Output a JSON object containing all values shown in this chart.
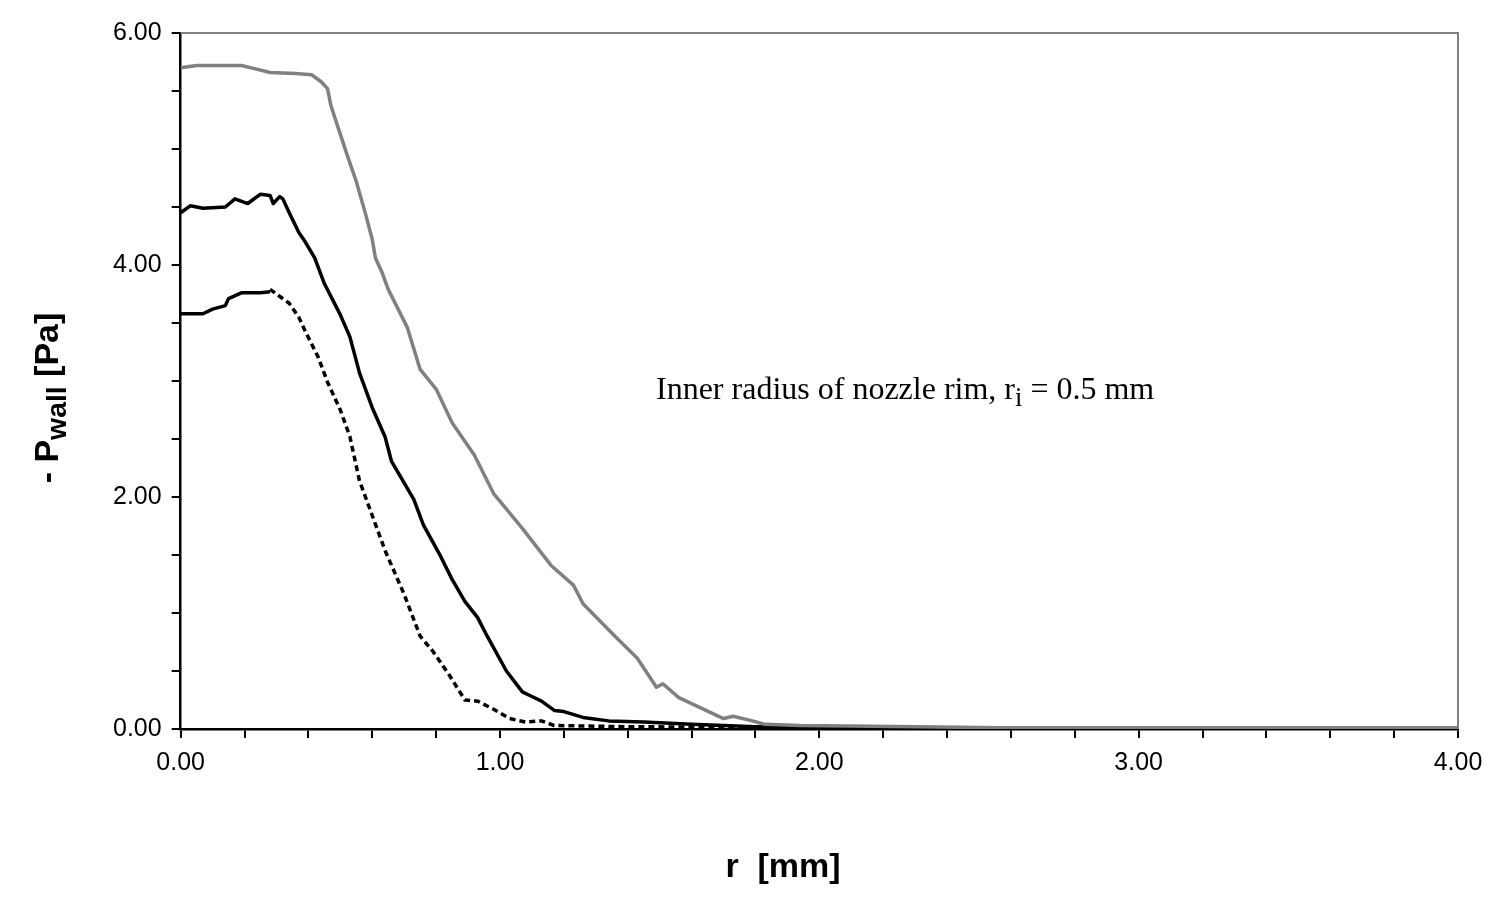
{
  "chart_data": {
    "type": "line",
    "xlabel": "r  [mm]",
    "ylabel": "- P$_{wall}$ [Pa]",
    "annotations": [
      "Inner radius of nozzle rim, r$_{i}$ = 0.5 mm"
    ],
    "xlim": [
      0,
      4
    ],
    "xticks": [
      {
        "value": 0,
        "label": "0.00"
      },
      {
        "value": 0.2,
        "label": null
      },
      {
        "value": 0.4,
        "label": null
      },
      {
        "value": 0.6,
        "label": null
      },
      {
        "value": 0.8,
        "label": null
      },
      {
        "value": 1,
        "label": "1.00"
      },
      {
        "value": 1.2,
        "label": null
      },
      {
        "value": 1.4,
        "label": null
      },
      {
        "value": 1.6,
        "label": null
      },
      {
        "value": 1.8,
        "label": null
      },
      {
        "value": 2,
        "label": "2.00"
      },
      {
        "value": 2.2,
        "label": null
      },
      {
        "value": 2.4,
        "label": null
      },
      {
        "value": 2.6,
        "label": null
      },
      {
        "value": 2.8,
        "label": null
      },
      {
        "value": 3,
        "label": "3.00"
      },
      {
        "value": 3.2,
        "label": null
      },
      {
        "value": 3.4,
        "label": null
      },
      {
        "value": 3.6,
        "label": null
      },
      {
        "value": 3.8,
        "label": null
      },
      {
        "value": 4,
        "label": "4.00"
      }
    ],
    "ylim": [
      0,
      6
    ],
    "yticks": [
      {
        "value": 0,
        "label": "0.00"
      },
      {
        "value": 0.5,
        "label": null
      },
      {
        "value": 1,
        "label": null
      },
      {
        "value": 1.5,
        "label": null
      },
      {
        "value": 2,
        "label": "2.00"
      },
      {
        "value": 2.5,
        "label": null
      },
      {
        "value": 3,
        "label": null
      },
      {
        "value": 3.5,
        "label": null
      },
      {
        "value": 4,
        "label": "4.00"
      },
      {
        "value": 4.5,
        "label": null
      },
      {
        "value": 5,
        "label": null
      },
      {
        "value": 5.5,
        "label": null
      },
      {
        "value": 6,
        "label": "6.00"
      }
    ],
    "marker": "none",
    "legend": false,
    "series": [
      {
        "color": "#808080",
        "line_style": "solid",
        "x": [
          0,
          0.05,
          0.19,
          0.28,
          0.36,
          0.41,
          0.44,
          0.46,
          0.47,
          0.49,
          0.52,
          0.55,
          0.58,
          0.6,
          0.61,
          0.63,
          0.65,
          0.71,
          0.75,
          0.8,
          0.85,
          0.92,
          0.98,
          1.07,
          1.16,
          1.23,
          1.26,
          1.36,
          1.43,
          1.49,
          1.51,
          1.56,
          1.63,
          1.7,
          1.73,
          1.79,
          1.83,
          1.94,
          2.31,
          2.57,
          4
        ],
        "values": [
          5.7,
          5.72,
          5.72,
          5.66,
          5.65,
          5.64,
          5.58,
          5.52,
          5.38,
          5.21,
          4.96,
          4.72,
          4.43,
          4.22,
          4.06,
          3.94,
          3.79,
          3.46,
          3.1,
          2.93,
          2.64,
          2.36,
          2.03,
          1.73,
          1.41,
          1.24,
          1.08,
          0.8,
          0.61,
          0.36,
          0.39,
          0.27,
          0.18,
          0.09,
          0.11,
          0.07,
          0.04,
          0.03,
          0.02,
          0.01,
          0.01
        ]
      },
      {
        "color": "#000000",
        "line_style": "solid",
        "x": [
          0,
          0.03,
          0.07,
          0.14,
          0.17,
          0.21,
          0.25,
          0.28,
          0.29,
          0.31,
          0.32,
          0.34,
          0.37,
          0.39,
          0.42,
          0.45,
          0.5,
          0.53,
          0.56,
          0.6,
          0.64,
          0.66,
          0.73,
          0.76,
          0.81,
          0.85,
          0.89,
          0.93,
          0.96,
          1.02,
          1.07,
          1.1,
          1.13,
          1.17,
          1.2,
          1.26,
          1.34,
          1.45,
          1.6,
          1.8,
          2.2,
          4
        ],
        "values": [
          4.45,
          4.51,
          4.49,
          4.5,
          4.57,
          4.53,
          4.61,
          4.6,
          4.53,
          4.59,
          4.57,
          4.45,
          4.28,
          4.2,
          4.06,
          3.84,
          3.57,
          3.38,
          3.07,
          2.77,
          2.52,
          2.31,
          1.98,
          1.76,
          1.51,
          1.29,
          1.1,
          0.96,
          0.8,
          0.5,
          0.32,
          0.28,
          0.24,
          0.16,
          0.15,
          0.1,
          0.07,
          0.06,
          0.04,
          0.02,
          0.01,
          0.01
        ]
      },
      {
        "color": "#000000",
        "line_style": "solid",
        "x": [
          0,
          0.07,
          0.1,
          0.14,
          0.15,
          0.19,
          0.25,
          0.28
        ],
        "values": [
          3.58,
          3.58,
          3.62,
          3.65,
          3.71,
          3.76,
          3.76,
          3.77
        ]
      },
      {
        "color": "#000000",
        "line_style": "dashed",
        "x": [
          0.28,
          0.34,
          0.37,
          0.39,
          0.43,
          0.46,
          0.5,
          0.53,
          0.56,
          0.6,
          0.64,
          0.7,
          0.75,
          0.79,
          0.84,
          0.89,
          0.93,
          0.98,
          1.03,
          1.08,
          1.13,
          1.17,
          1.4,
          2,
          4
        ],
        "values": [
          3.79,
          3.67,
          3.55,
          3.43,
          3.21,
          2.99,
          2.75,
          2.52,
          2.14,
          1.84,
          1.54,
          1.16,
          0.8,
          0.67,
          0.47,
          0.25,
          0.24,
          0.17,
          0.09,
          0.06,
          0.07,
          0.03,
          0.02,
          0.01,
          0.01
        ]
      }
    ]
  }
}
